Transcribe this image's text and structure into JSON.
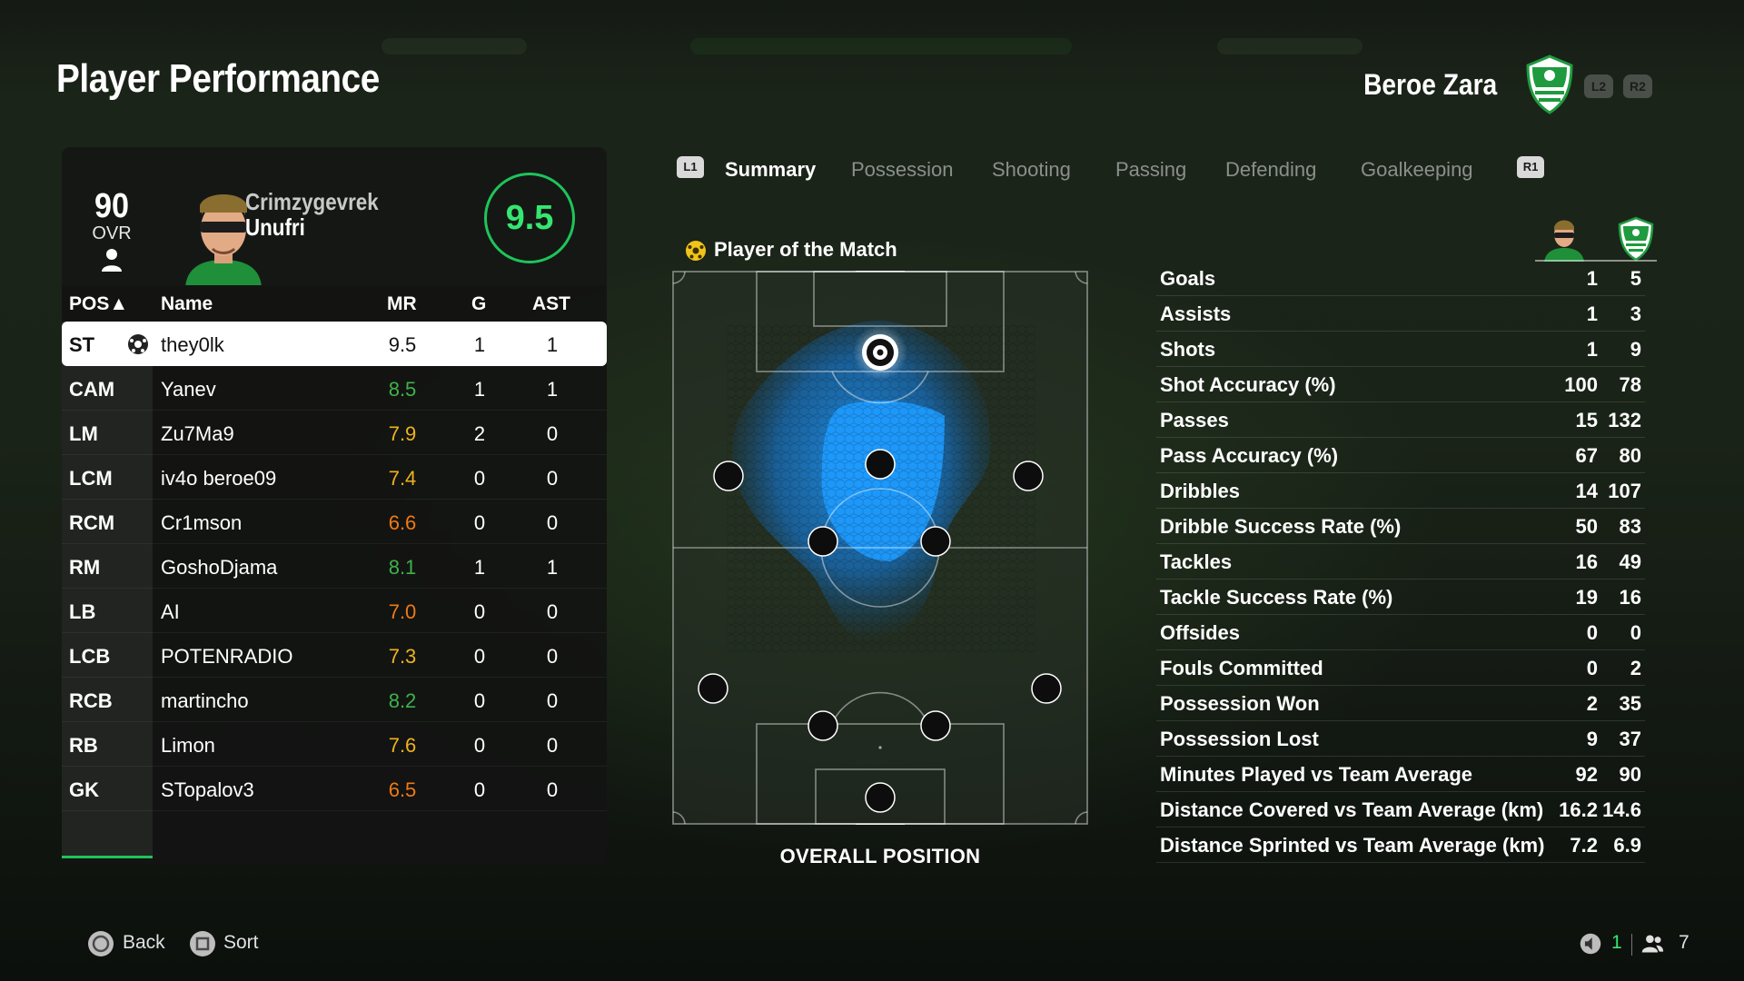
{
  "page": {
    "title": "Player Performance"
  },
  "team": {
    "name": "Beroe Zara",
    "l2_label": "L2",
    "r2_label": "R2"
  },
  "player": {
    "ovr": "90",
    "ovr_label": "OVR",
    "first_name": "Crimzygevrek",
    "last_name": "Unufri",
    "rating": "9.5"
  },
  "table": {
    "headers": {
      "pos": "POS▲",
      "name": "Name",
      "mr": "MR",
      "g": "G",
      "ast": "AST"
    },
    "rows": [
      {
        "pos": "ST",
        "name": "they0lk",
        "mr": "9.5",
        "g": "1",
        "ast": "1"
      },
      {
        "pos": "CAM",
        "name": "Yanev",
        "mr": "8.5",
        "g": "1",
        "ast": "1"
      },
      {
        "pos": "LM",
        "name": "Zu7Ma9",
        "mr": "7.9",
        "g": "2",
        "ast": "0"
      },
      {
        "pos": "LCM",
        "name": "iv4o beroe09",
        "mr": "7.4",
        "g": "0",
        "ast": "0"
      },
      {
        "pos": "RCM",
        "name": "Cr1mson",
        "mr": "6.6",
        "g": "0",
        "ast": "0"
      },
      {
        "pos": "RM",
        "name": "GoshoDjama",
        "mr": "8.1",
        "g": "1",
        "ast": "1"
      },
      {
        "pos": "LB",
        "name": "AI",
        "mr": "7.0",
        "g": "0",
        "ast": "0"
      },
      {
        "pos": "LCB",
        "name": "POTENRADIO",
        "mr": "7.3",
        "g": "0",
        "ast": "0"
      },
      {
        "pos": "RCB",
        "name": "martincho",
        "mr": "8.2",
        "g": "0",
        "ast": "0"
      },
      {
        "pos": "RB",
        "name": "Limon",
        "mr": "7.6",
        "g": "0",
        "ast": "0"
      },
      {
        "pos": "GK",
        "name": "STopalov3",
        "mr": "6.5",
        "g": "0",
        "ast": "0"
      }
    ]
  },
  "tabs": {
    "l1_label": "L1",
    "r1_label": "R1",
    "items": [
      "Summary",
      "Possession",
      "Shooting",
      "Passing",
      "Defending",
      "Goalkeeping"
    ],
    "active": "Summary"
  },
  "summary": {
    "potm_label": "Player of the Match",
    "pitch_caption": "OVERALL POSITION"
  },
  "stats": [
    {
      "label": "Goals",
      "player": "1",
      "team": "5"
    },
    {
      "label": "Assists",
      "player": "1",
      "team": "3"
    },
    {
      "label": "Shots",
      "player": "1",
      "team": "9"
    },
    {
      "label": "Shot Accuracy (%)",
      "player": "100",
      "team": "78"
    },
    {
      "label": "Passes",
      "player": "15",
      "team": "132"
    },
    {
      "label": "Pass Accuracy (%)",
      "player": "67",
      "team": "80"
    },
    {
      "label": "Dribbles",
      "player": "14",
      "team": "107"
    },
    {
      "label": "Dribble Success Rate (%)",
      "player": "50",
      "team": "83"
    },
    {
      "label": "Tackles",
      "player": "16",
      "team": "49"
    },
    {
      "label": "Tackle Success Rate (%)",
      "player": "19",
      "team": "16"
    },
    {
      "label": "Offsides",
      "player": "0",
      "team": "0"
    },
    {
      "label": "Fouls Committed",
      "player": "0",
      "team": "2"
    },
    {
      "label": "Possession Won",
      "player": "2",
      "team": "35"
    },
    {
      "label": "Possession Lost",
      "player": "9",
      "team": "37"
    },
    {
      "label": "Minutes Played vs Team Average",
      "player": "92",
      "team": "90"
    },
    {
      "label": "Distance Covered vs Team Average (km)",
      "player": "16.2",
      "team": "14.6"
    },
    {
      "label": "Distance Sprinted vs Team Average (km)",
      "player": "7.2",
      "team": "6.9"
    }
  ],
  "footer": {
    "back_label": "Back",
    "sort_label": "Sort",
    "count_a": "1",
    "count_b": "7"
  },
  "colors": {
    "accent": "#1ec45a",
    "heat": "#1e9bff",
    "mr_green": "#3fb24a",
    "mr_yellow": "#f0b21c",
    "mr_orange": "#f07a13"
  },
  "icons": [
    "person-icon",
    "ball-icon",
    "star-ball-icon",
    "crest-icon",
    "circle-button-icon",
    "square-button-icon",
    "speaker-icon",
    "people-icon"
  ]
}
